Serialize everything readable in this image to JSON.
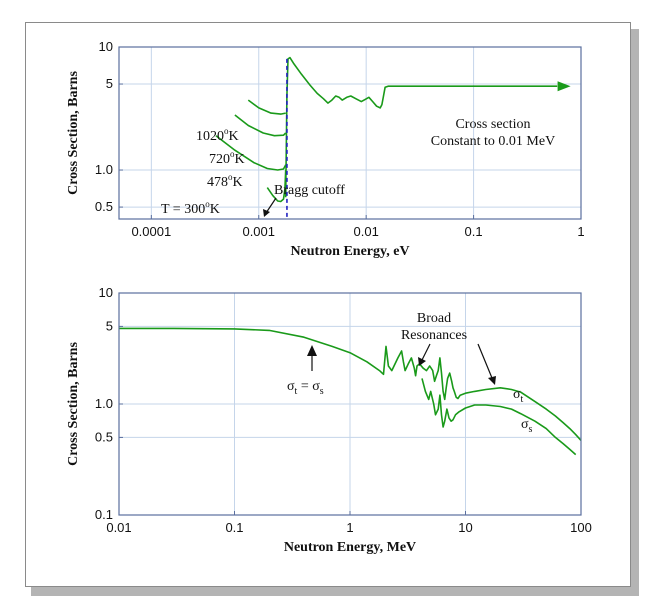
{
  "colors": {
    "curve": "#1a9a1a",
    "grid": "#c5d5ea",
    "axis": "#5a6f9e",
    "bragg_line": "#2020c0",
    "text": "#111111"
  },
  "chart_data": [
    {
      "type": "line",
      "xlabel": "Neutron Energy, eV",
      "ylabel": "Cross Section, Barns",
      "xscale": "log",
      "yscale": "log",
      "xlim": [
        5e-05,
        1
      ],
      "ylim": [
        0.4,
        10
      ],
      "grid": true,
      "xticks": [
        {
          "v": 0.0001,
          "label": "0.0001"
        },
        {
          "v": 0.001,
          "label": "0.001"
        },
        {
          "v": 0.01,
          "label": "0.01"
        },
        {
          "v": 0.1,
          "label": "0.1"
        },
        {
          "v": 1,
          "label": "1"
        }
      ],
      "yticks": [
        {
          "v": 0.5,
          "label": "0.5"
        },
        {
          "v": 1,
          "label": "1.0"
        },
        {
          "v": 5,
          "label": "5"
        },
        {
          "v": 10,
          "label": "10"
        }
      ],
      "series": [
        {
          "name": "T = 300°K",
          "x": [
            0.0012,
            0.00135,
            0.0015,
            0.0016,
            0.0017,
            0.00175,
            0.00178
          ],
          "y": [
            0.72,
            0.62,
            0.56,
            0.555,
            0.58,
            0.7,
            1.0
          ]
        },
        {
          "name": "478°K",
          "x": [
            0.0004,
            0.0006,
            0.0009,
            0.0012,
            0.0015,
            0.0017,
            0.00178
          ],
          "y": [
            1.9,
            1.45,
            1.15,
            1.03,
            1.0,
            1.02,
            1.1
          ]
        },
        {
          "name": "720°K",
          "x": [
            0.0006,
            0.0008,
            0.0011,
            0.0014,
            0.0017,
            0.00178
          ],
          "y": [
            2.8,
            2.3,
            2.0,
            1.9,
            1.92,
            2.0
          ]
        },
        {
          "name": "1020°K",
          "x": [
            0.0008,
            0.001,
            0.0013,
            0.0016,
            0.00178
          ],
          "y": [
            3.7,
            3.2,
            2.9,
            2.85,
            2.9
          ]
        },
        {
          "name": "main",
          "x": [
            0.00178,
            0.00183,
            0.00187,
            0.00195,
            0.0021,
            0.0025,
            0.003,
            0.0035,
            0.004,
            0.0044,
            0.0048,
            0.0052,
            0.0056,
            0.006,
            0.0066,
            0.0072,
            0.008,
            0.009,
            0.0098,
            0.0106,
            0.0115,
            0.0125,
            0.0135,
            0.014,
            0.0145,
            0.015,
            0.016,
            0.02,
            0.05,
            0.1,
            0.3,
            0.6
          ],
          "y": [
            0.6,
            4.0,
            8.0,
            8.2,
            7.4,
            6.0,
            4.9,
            4.2,
            3.8,
            3.5,
            3.7,
            4.0,
            3.9,
            3.7,
            3.9,
            4.0,
            3.8,
            3.6,
            3.75,
            3.9,
            3.6,
            3.3,
            3.2,
            3.4,
            4.0,
            4.7,
            4.8,
            4.8,
            4.8,
            4.8,
            4.8,
            4.8
          ]
        }
      ],
      "bragg_cutoff_x": 0.00183,
      "arrow_to_x": 0.8,
      "annotations": {
        "t300": "T = 300",
        "t300_unit": "K",
        "t478": "478",
        "t478_unit": "K",
        "t720": "720",
        "t720_unit": "K",
        "t1020": "1020",
        "t1020_unit": "K",
        "degree_sup": "o",
        "bragg": "Bragg cutoff",
        "const_line1": "Cross section",
        "const_line2": "Constant to 0.01 MeV"
      }
    },
    {
      "type": "line",
      "xlabel": "Neutron Energy, MeV",
      "ylabel": "Cross Section, Barns",
      "xscale": "log",
      "yscale": "log",
      "xlim": [
        0.01,
        100
      ],
      "ylim": [
        0.1,
        10
      ],
      "grid": true,
      "xticks": [
        {
          "v": 0.01,
          "label": "0.01"
        },
        {
          "v": 0.1,
          "label": "0.1"
        },
        {
          "v": 1,
          "label": "1"
        },
        {
          "v": 10,
          "label": "10"
        },
        {
          "v": 100,
          "label": "100"
        }
      ],
      "yticks": [
        {
          "v": 0.1,
          "label": "0.1"
        },
        {
          "v": 0.5,
          "label": "0.5"
        },
        {
          "v": 1,
          "label": "1.0"
        },
        {
          "v": 5,
          "label": "5"
        },
        {
          "v": 10,
          "label": "10"
        }
      ],
      "series": [
        {
          "name": "σt",
          "x": [
            0.01,
            0.03,
            0.1,
            0.2,
            0.4,
            0.7,
            1.0,
            1.4,
            1.8,
            1.95,
            2.0,
            2.05,
            2.15,
            2.3,
            2.6,
            2.8,
            2.9,
            3.0,
            3.2,
            3.4,
            3.6,
            3.7,
            3.8,
            4.0,
            4.3,
            4.6,
            4.9,
            5.2,
            5.4,
            5.6,
            5.8,
            6.0,
            6.2,
            6.4,
            6.6,
            6.8,
            7.0,
            7.3,
            7.6,
            7.8,
            8.0,
            8.3,
            8.6,
            9.0,
            10,
            12,
            15,
            20,
            25,
            30,
            40,
            50,
            60,
            70,
            80,
            90,
            100
          ],
          "y": [
            4.8,
            4.8,
            4.75,
            4.6,
            4.0,
            3.3,
            2.9,
            2.4,
            2.0,
            1.85,
            2.5,
            3.3,
            2.2,
            2.0,
            2.6,
            3.0,
            2.4,
            2.0,
            2.3,
            2.6,
            2.1,
            1.8,
            2.2,
            2.3,
            2.1,
            2.0,
            2.2,
            2.0,
            1.6,
            1.8,
            2.0,
            2.6,
            1.9,
            1.3,
            1.1,
            1.4,
            1.7,
            1.9,
            1.6,
            1.4,
            1.3,
            1.15,
            1.12,
            1.2,
            1.25,
            1.3,
            1.35,
            1.4,
            1.35,
            1.28,
            1.05,
            0.9,
            0.78,
            0.68,
            0.6,
            0.53,
            0.47
          ]
        },
        {
          "name": "σs",
          "x": [
            4.2,
            4.5,
            4.8,
            5.0,
            5.3,
            5.5,
            5.8,
            6.0,
            6.2,
            6.4,
            6.6,
            6.9,
            7.2,
            7.5,
            7.8,
            8.2,
            8.8,
            10,
            12,
            15,
            20,
            25,
            30,
            40,
            50,
            60,
            70,
            80,
            90
          ],
          "y": [
            1.7,
            1.3,
            1.1,
            1.3,
            1.0,
            0.8,
            0.9,
            1.2,
            0.8,
            0.62,
            0.7,
            0.9,
            0.75,
            0.7,
            0.72,
            0.8,
            0.85,
            0.92,
            0.98,
            0.98,
            0.95,
            0.9,
            0.82,
            0.7,
            0.6,
            0.5,
            0.44,
            0.39,
            0.35
          ]
        }
      ],
      "annotations": {
        "sigma": "σ",
        "sub_t": "t",
        "sub_s": "s",
        "equals": " = ",
        "broad_line1": "Broad",
        "broad_line2": "Resonances"
      }
    }
  ]
}
